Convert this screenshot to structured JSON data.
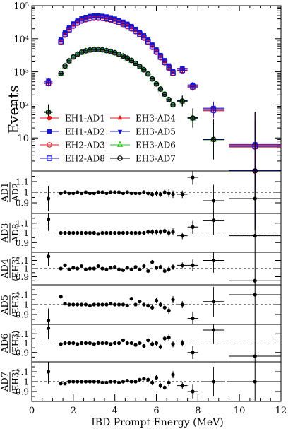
{
  "chart_data": {
    "type": "scatter",
    "xlabel": "IBD Prompt Energy (MeV)",
    "xlim": [
      0,
      12
    ],
    "x_ticks": [
      "0",
      "2",
      "4",
      "6",
      "8",
      "10",
      "12"
    ],
    "main_panel": {
      "ylabel": "Events",
      "yscale": "log",
      "ylim": [
        1,
        100000
      ],
      "y_tick_labels": [
        "10",
        "10²",
        "10³",
        "10⁴",
        "10⁵"
      ],
      "legend": [
        {
          "name": "EH1-AD1",
          "color": "#e8161b",
          "marker": "filled-circle"
        },
        {
          "name": "EH1-AD2",
          "color": "#1414d8",
          "marker": "filled-square"
        },
        {
          "name": "EH2-AD3",
          "color": "#e8161b",
          "marker": "open-circle"
        },
        {
          "name": "EH2-AD8",
          "color": "#1414d8",
          "marker": "open-square"
        },
        {
          "name": "EH3-AD4",
          "color": "#e8161b",
          "marker": "filled-triangle-up"
        },
        {
          "name": "EH3-AD5",
          "color": "#1414d8",
          "marker": "filled-triangle-down"
        },
        {
          "name": "EH3-AD6",
          "color": "#21c21b",
          "marker": "open-triangle-up"
        },
        {
          "name": "EH3-AD7",
          "color": "#000000",
          "marker": "open-circle-cross"
        }
      ],
      "x": [
        0.8,
        1.4,
        1.6,
        1.8,
        2.0,
        2.2,
        2.4,
        2.6,
        2.8,
        3.0,
        3.2,
        3.4,
        3.6,
        3.8,
        4.0,
        4.2,
        4.4,
        4.6,
        4.8,
        5.0,
        5.2,
        5.4,
        5.6,
        5.8,
        6.0,
        6.2,
        6.4,
        6.6,
        6.8,
        7.25,
        7.75,
        8.75,
        10.75
      ],
      "near_hall_values": [
        500,
        8800,
        14500,
        20500,
        27000,
        33000,
        38500,
        42500,
        45500,
        47000,
        47000,
        46000,
        44000,
        41500,
        38000,
        34500,
        30500,
        26500,
        22500,
        18500,
        15000,
        11800,
        8800,
        6200,
        4400,
        3000,
        2100,
        1450,
        1000,
        1200,
        380,
        75,
        6
      ],
      "far_hall_values": [
        60,
        900,
        1500,
        2150,
        2800,
        3400,
        3900,
        4300,
        4550,
        4700,
        4700,
        4600,
        4350,
        4100,
        3750,
        3400,
        3000,
        2600,
        2200,
        1800,
        1450,
        1150,
        860,
        610,
        430,
        300,
        210,
        145,
        100,
        130,
        40,
        9,
        1
      ]
    },
    "ratio_panels": [
      {
        "ylabel_top": "AD1",
        "ylabel_bottom": "AD2",
        "y_ticks": [
          "0.9",
          "1",
          "1.1"
        ],
        "ylim": [
          0.8,
          1.2
        ],
        "points": [
          [
            0.8,
            0.94
          ],
          [
            1.4,
            0.99
          ],
          [
            1.6,
            1.0
          ],
          [
            1.8,
            0.99
          ],
          [
            2.0,
            0.99
          ],
          [
            2.2,
            1.0
          ],
          [
            2.4,
            0.99
          ],
          [
            2.6,
            1.0
          ],
          [
            2.8,
            0.99
          ],
          [
            3.0,
            0.99
          ],
          [
            3.2,
            1.0
          ],
          [
            3.4,
            1.0
          ],
          [
            3.6,
            0.99
          ],
          [
            3.8,
            1.0
          ],
          [
            4.0,
            1.0
          ],
          [
            4.2,
            1.0
          ],
          [
            4.4,
            0.99
          ],
          [
            4.6,
            1.0
          ],
          [
            4.8,
            0.99
          ],
          [
            5.0,
            0.99
          ],
          [
            5.2,
            0.99
          ],
          [
            5.4,
            1.0
          ],
          [
            5.6,
            0.99
          ],
          [
            5.8,
            0.98
          ],
          [
            6.0,
            0.99
          ],
          [
            6.2,
            0.98
          ],
          [
            6.4,
            1.0
          ],
          [
            6.6,
            0.99
          ],
          [
            6.8,
            0.98
          ],
          [
            7.25,
            0.98
          ],
          [
            7.75,
            1.14
          ],
          [
            8.75,
            0.92
          ],
          [
            10.75,
            0.94
          ]
        ]
      },
      {
        "ylabel_top": "AD3",
        "ylabel_bottom": "AD8",
        "y_ticks": [
          "0.9",
          "1",
          "1.1"
        ],
        "ylim": [
          0.8,
          1.2
        ],
        "points": [
          [
            0.8,
            1.14
          ],
          [
            1.4,
            1.0
          ],
          [
            1.6,
            1.0
          ],
          [
            1.8,
            1.0
          ],
          [
            2.0,
            1.0
          ],
          [
            2.2,
            1.0
          ],
          [
            2.4,
            1.0
          ],
          [
            2.6,
            1.0
          ],
          [
            2.8,
            1.0
          ],
          [
            3.0,
            1.0
          ],
          [
            3.2,
            0.99
          ],
          [
            3.4,
            1.0
          ],
          [
            3.6,
            1.0
          ],
          [
            3.8,
            1.0
          ],
          [
            4.0,
            1.0
          ],
          [
            4.2,
            1.0
          ],
          [
            4.4,
            1.0
          ],
          [
            4.6,
            1.0
          ],
          [
            4.8,
            1.0
          ],
          [
            5.0,
            1.0
          ],
          [
            5.2,
            1.0
          ],
          [
            5.4,
            1.0
          ],
          [
            5.6,
            1.01
          ],
          [
            5.8,
            1.01
          ],
          [
            6.0,
            1.01
          ],
          [
            6.2,
            1.01
          ],
          [
            6.4,
            1.02
          ],
          [
            6.6,
            1.0
          ],
          [
            6.8,
            1.01
          ],
          [
            7.25,
            0.97
          ],
          [
            7.75,
            1.06
          ],
          [
            8.75,
            1.13
          ],
          [
            10.75,
            0.97
          ]
        ]
      },
      {
        "ylabel_top": "AD4",
        "ylabel_bottom": "⟨EH3⟩",
        "y_ticks": [
          "0.9",
          "1",
          "1.1"
        ],
        "ylim": [
          0.8,
          1.2
        ],
        "points": [
          [
            0.8,
            1.15
          ],
          [
            1.4,
            1.0
          ],
          [
            1.6,
            1.04
          ],
          [
            1.8,
            0.99
          ],
          [
            2.0,
            1.01
          ],
          [
            2.2,
            1.0
          ],
          [
            2.4,
            1.03
          ],
          [
            2.6,
            0.99
          ],
          [
            2.8,
            1.0
          ],
          [
            3.0,
            1.0
          ],
          [
            3.2,
            1.03
          ],
          [
            3.4,
            1.0
          ],
          [
            3.6,
            0.99
          ],
          [
            3.8,
            1.01
          ],
          [
            4.0,
            1.02
          ],
          [
            4.2,
            0.99
          ],
          [
            4.4,
            0.98
          ],
          [
            4.6,
            1.01
          ],
          [
            4.8,
            0.99
          ],
          [
            5.0,
            1.02
          ],
          [
            5.2,
            0.99
          ],
          [
            5.4,
            1.03
          ],
          [
            5.6,
            0.97
          ],
          [
            5.8,
            1.08
          ],
          [
            6.0,
            1.01
          ],
          [
            6.2,
            1.02
          ],
          [
            6.4,
            0.97
          ],
          [
            6.6,
            0.99
          ],
          [
            6.8,
            1.02
          ],
          [
            7.25,
            1.04
          ],
          [
            7.75,
            1.04
          ],
          [
            8.75,
            1.1
          ],
          [
            10.75,
            0.85
          ]
        ]
      },
      {
        "ylabel_top": "AD5",
        "ylabel_bottom": "⟨EH3⟩",
        "y_ticks": [
          "0.9",
          "1",
          "1.1"
        ],
        "ylim": [
          0.8,
          1.2
        ],
        "points": [
          [
            0.8,
            0.84
          ],
          [
            1.4,
            1.08
          ],
          [
            1.6,
            1.01
          ],
          [
            1.8,
            1.0
          ],
          [
            2.0,
            1.0
          ],
          [
            2.2,
            1.0
          ],
          [
            2.4,
            1.0
          ],
          [
            2.6,
            1.0
          ],
          [
            2.8,
            0.99
          ],
          [
            3.0,
            1.0
          ],
          [
            3.2,
            1.0
          ],
          [
            3.4,
            1.0
          ],
          [
            3.6,
            1.0
          ],
          [
            3.8,
            1.01
          ],
          [
            4.0,
            1.0
          ],
          [
            4.2,
            1.0
          ],
          [
            4.4,
            1.0
          ],
          [
            4.6,
            0.99
          ],
          [
            4.8,
            1.06
          ],
          [
            5.0,
            1.0
          ],
          [
            5.2,
            1.03
          ],
          [
            5.4,
            1.0
          ],
          [
            5.6,
            0.99
          ],
          [
            5.8,
            0.97
          ],
          [
            6.0,
            1.04
          ],
          [
            6.2,
            1.0
          ],
          [
            6.4,
            0.97
          ],
          [
            6.6,
            0.94
          ],
          [
            6.8,
            1.05
          ],
          [
            7.25,
            1.0
          ],
          [
            7.75,
            0.86
          ],
          [
            8.75,
            1.03
          ],
          [
            10.75,
            1.1
          ]
        ]
      },
      {
        "ylabel_top": "AD6",
        "ylabel_bottom": "⟨EH3⟩",
        "y_ticks": [
          "0.9",
          "1",
          "1.1"
        ],
        "ylim": [
          0.8,
          1.2
        ],
        "points": [
          [
            0.8,
            1.16
          ],
          [
            1.4,
            0.99
          ],
          [
            1.6,
            1.0
          ],
          [
            1.8,
            1.0
          ],
          [
            2.0,
            1.0
          ],
          [
            2.2,
            0.99
          ],
          [
            2.4,
            1.0
          ],
          [
            2.6,
            1.0
          ],
          [
            2.8,
            1.0
          ],
          [
            3.0,
            0.99
          ],
          [
            3.2,
            1.0
          ],
          [
            3.4,
            1.0
          ],
          [
            3.6,
            1.0
          ],
          [
            3.8,
            0.99
          ],
          [
            4.0,
            1.0
          ],
          [
            4.2,
            1.0
          ],
          [
            4.4,
            1.03
          ],
          [
            4.6,
            1.0
          ],
          [
            4.8,
            1.0
          ],
          [
            5.0,
            0.98
          ],
          [
            5.2,
            1.0
          ],
          [
            5.4,
            0.97
          ],
          [
            5.6,
            1.03
          ],
          [
            5.8,
            0.99
          ],
          [
            6.0,
            1.0
          ],
          [
            6.2,
            0.96
          ],
          [
            6.4,
            1.05
          ],
          [
            6.6,
            1.06
          ],
          [
            6.8,
            0.99
          ],
          [
            7.25,
            1.0
          ],
          [
            7.75,
            0.9
          ],
          [
            8.75,
            1.14
          ],
          [
            10.75,
            0.86
          ]
        ]
      },
      {
        "ylabel_top": "AD7",
        "ylabel_bottom": "⟨EH3⟩",
        "y_ticks": [
          "0.9",
          "1",
          "1.1"
        ],
        "ylim": [
          0.8,
          1.2
        ],
        "points": [
          [
            0.8,
            1.1
          ],
          [
            1.4,
            0.98
          ],
          [
            1.6,
            0.98
          ],
          [
            1.8,
            1.0
          ],
          [
            2.0,
            1.0
          ],
          [
            2.2,
            1.0
          ],
          [
            2.4,
            1.0
          ],
          [
            2.6,
            1.0
          ],
          [
            2.8,
            1.0
          ],
          [
            3.0,
            1.0
          ],
          [
            3.2,
            1.0
          ],
          [
            3.4,
            0.99
          ],
          [
            3.6,
            0.99
          ],
          [
            3.8,
            1.0
          ],
          [
            4.0,
            1.0
          ],
          [
            4.2,
            0.99
          ],
          [
            4.4,
            1.0
          ],
          [
            4.6,
            1.01
          ],
          [
            4.8,
            1.0
          ],
          [
            5.0,
            1.0
          ],
          [
            5.2,
            1.02
          ],
          [
            5.4,
            1.03
          ],
          [
            5.6,
            1.02
          ],
          [
            5.8,
            0.99
          ],
          [
            6.0,
            1.04
          ],
          [
            6.2,
            0.96
          ],
          [
            6.4,
            0.94
          ],
          [
            6.6,
            0.99
          ],
          [
            6.8,
            1.07
          ],
          [
            7.25,
            0.96
          ],
          [
            7.75,
            0.9
          ],
          [
            8.75,
            1.0
          ],
          [
            10.75,
            1.0
          ]
        ]
      }
    ]
  }
}
